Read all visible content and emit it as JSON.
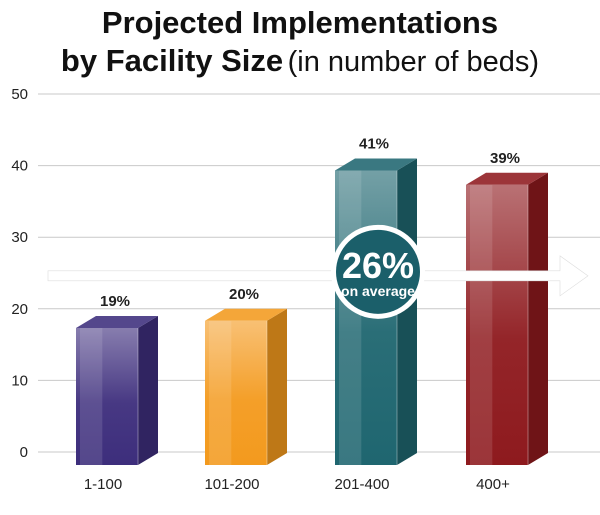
{
  "chart_data": {
    "type": "bar",
    "title_bold": "Projected Implementations",
    "title_line2_bold": "by Facility Size",
    "title_line2_normal": "(in number of beds)",
    "categories": [
      "1-100",
      "101-200",
      "201-400",
      "400+"
    ],
    "values": [
      19,
      20,
      41,
      39
    ],
    "value_labels": [
      "19%",
      "20%",
      "41%",
      "39%"
    ],
    "colors": [
      "#3d2e7c",
      "#f39a1e",
      "#1f6670",
      "#8e1a1e"
    ],
    "yticks": [
      0,
      10,
      20,
      30,
      40,
      50
    ],
    "ylim": [
      0,
      50
    ],
    "grid": true,
    "annotation": {
      "value": "26%",
      "text": "on average",
      "avg_value": 26
    }
  }
}
